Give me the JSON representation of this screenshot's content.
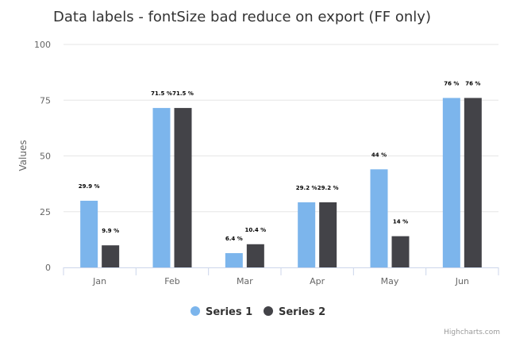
{
  "chart_data": {
    "type": "bar",
    "title": "Data labels - fontSize bad reduce on export (FF only)",
    "ylabel": "Values",
    "xlabel": "",
    "categories": [
      "Jan",
      "Feb",
      "Mar",
      "Apr",
      "May",
      "Jun"
    ],
    "ylim": [
      0,
      100
    ],
    "yticks": [
      0,
      25,
      50,
      75,
      100
    ],
    "grid": true,
    "legend_position": "bottom",
    "series": [
      {
        "name": "Series 1",
        "color": "#7cb5ec",
        "values": [
          29.9,
          71.5,
          6.4,
          29.2,
          44,
          76
        ],
        "labels": [
          "29.9 %",
          "71.5 %",
          "6.4 %",
          "29.2 %",
          "44 %",
          "76 %"
        ]
      },
      {
        "name": "Series 2",
        "color": "#434348",
        "values": [
          9.9,
          71.5,
          10.4,
          29.2,
          14,
          76
        ],
        "labels": [
          "9.9 %",
          "71.5 %",
          "10.4 %",
          "29.2 %",
          "14 %",
          "76 %"
        ]
      }
    ]
  },
  "credits": "Highcharts.com"
}
